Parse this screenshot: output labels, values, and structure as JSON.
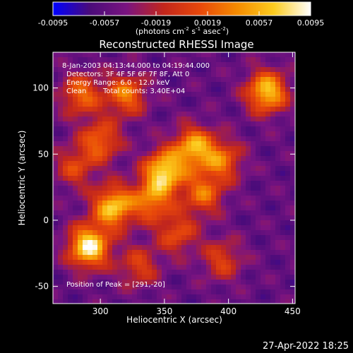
{
  "chart_data": {
    "type": "heatmap",
    "title": "Reconstructed RHESSI Image",
    "xlabel": "Heliocentric X (arcsec)",
    "ylabel": "Heliocentric Y (arcsec)",
    "xlim": [
      263,
      452
    ],
    "ylim": [
      -63,
      127
    ],
    "xticks": [
      300,
      350,
      400,
      450
    ],
    "yticks": [
      -50,
      0,
      50,
      100
    ],
    "colorbar": {
      "range": [
        -0.0095,
        0.0095
      ],
      "ticks": [
        "-0.0095",
        "-0.0057",
        "-0.0019",
        "0.0019",
        "0.0057",
        "0.0095"
      ],
      "label_main": "(photons cm",
      "label_sup1": "-2",
      "label_mid1": " s",
      "label_sup2": "-1",
      "label_mid2": " asec",
      "label_sup3": "-2",
      "label_end": ")",
      "colormap": [
        "#0000ff",
        "#4a0b7a",
        "#7a1480",
        "#c2261c",
        "#e8480a",
        "#f58b00",
        "#fccc1f",
        "#ffffff"
      ]
    },
    "annotations": {
      "time_range": "8-Jan-2003 04:13:44.000 to 04:19:44.000",
      "detectors": "Detectors: 3F 4F 5F 6F 7F 8F, Att 0",
      "energy": "Energy Range: 6.0 - 12.0 keV",
      "clean": "Clean",
      "counts": "Total counts: 3.40E+04",
      "peak": "Position of Peak = [291,-20]"
    },
    "blobs": [
      {
        "x": 291,
        "y": -20,
        "value": 1.0
      },
      {
        "x": 310,
        "y": 10,
        "value": 0.85
      },
      {
        "x": 350,
        "y": 37,
        "value": 0.9
      },
      {
        "x": 373,
        "y": 55,
        "value": 0.75
      },
      {
        "x": 430,
        "y": 97,
        "value": 0.85
      },
      {
        "x": 340,
        "y": 15,
        "value": 0.6
      },
      {
        "x": 380,
        "y": 20,
        "value": 0.55
      },
      {
        "x": 395,
        "y": 45,
        "value": 0.55
      },
      {
        "x": 300,
        "y": 60,
        "value": 0.55
      },
      {
        "x": 320,
        "y": 95,
        "value": 0.6
      },
      {
        "x": 285,
        "y": 95,
        "value": 0.55
      },
      {
        "x": 360,
        "y": -10,
        "value": 0.45
      },
      {
        "x": 330,
        "y": -35,
        "value": 0.4
      },
      {
        "x": 395,
        "y": -30,
        "value": 0.4
      },
      {
        "x": 280,
        "y": 40,
        "value": 0.4
      }
    ]
  },
  "footer": {
    "timestamp": "27-Apr-2022 18:25"
  }
}
